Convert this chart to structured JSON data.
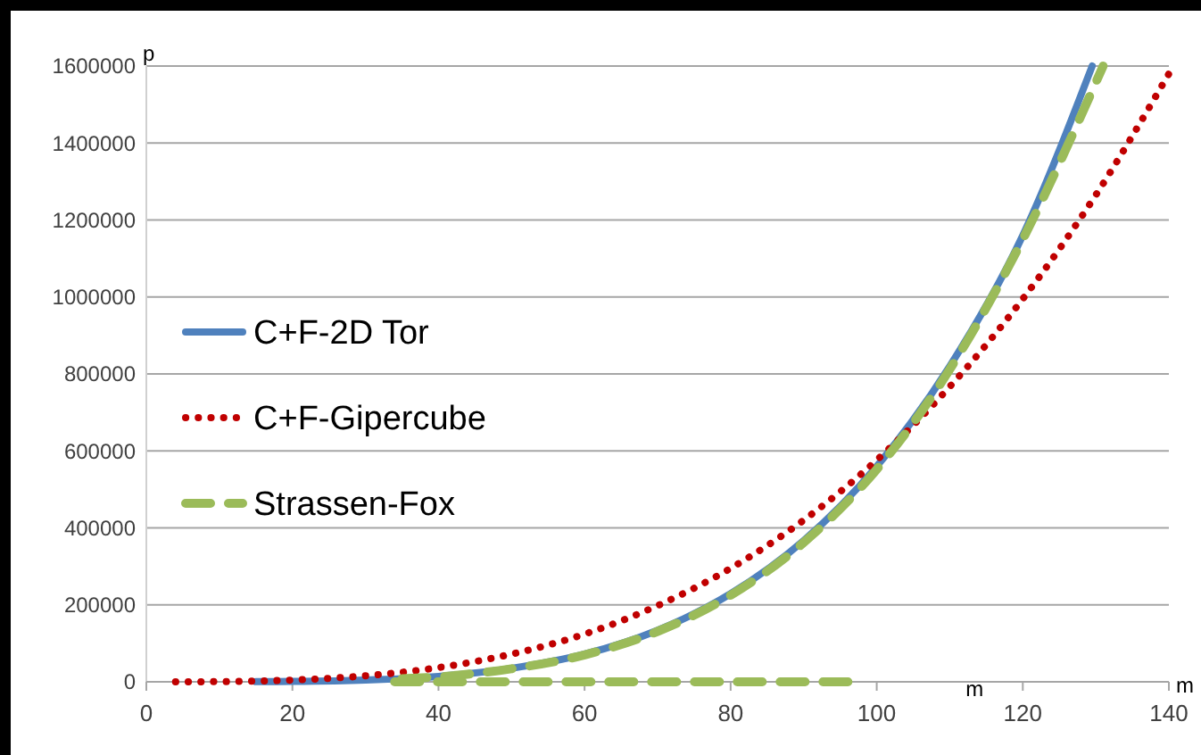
{
  "chart_data": {
    "type": "line",
    "ylabel": "p",
    "xlabel": "m",
    "annotations": [
      "m"
    ],
    "xlim": [
      0,
      140
    ],
    "xticks": [
      0,
      20,
      40,
      60,
      80,
      100,
      120,
      140
    ],
    "ylim": [
      0,
      1600000
    ],
    "yticks": [
      0,
      200000,
      400000,
      600000,
      800000,
      1000000,
      1200000,
      1400000,
      1600000
    ],
    "grid": "y",
    "legend": "left",
    "series": [
      {
        "name": "C+F-2D Tor",
        "color": "#4f81bd",
        "line_style": "solid",
        "x": [
          15,
          20,
          30,
          40,
          50,
          60,
          70,
          80,
          90,
          100,
          110,
          120,
          129.5
        ],
        "values": [
          300,
          900,
          4500,
          14000,
          35000,
          72000,
          134000,
          229000,
          367000,
          560000,
          820000,
          1160000,
          1600000
        ]
      },
      {
        "name": "C+F-Gipercube",
        "color": "#c00000",
        "line_style": "dotted",
        "x": [
          4,
          10,
          20,
          30,
          40,
          50,
          60,
          70,
          80,
          90,
          100,
          110,
          120,
          130,
          140
        ],
        "values": [
          0,
          600,
          4600,
          15600,
          37000,
          72000,
          124000,
          198000,
          295000,
          420000,
          576000,
          767000,
          995000,
          1265000,
          1580000
        ]
      },
      {
        "name": "Strassen-Fox",
        "color": "#9bbb59",
        "line_style": "dashed",
        "x": [
          35,
          40,
          50,
          60,
          70,
          80,
          90,
          100,
          110,
          120,
          131
        ],
        "values": [
          8000,
          13000,
          34000,
          70000,
          131000,
          225000,
          362000,
          552000,
          812000,
          1150000,
          1600000
        ]
      },
      {
        "color": "#9bbb59",
        "line_style": "dashed",
        "x": [
          34,
          97
        ],
        "values": [
          0,
          0
        ]
      }
    ]
  }
}
